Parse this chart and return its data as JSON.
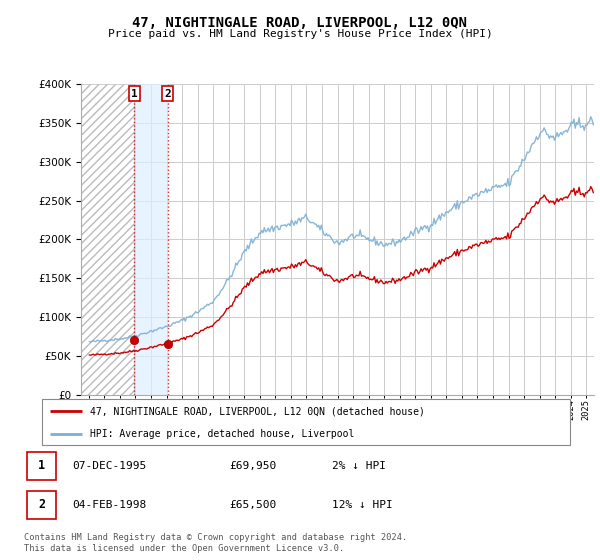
{
  "title": "47, NIGHTINGALE ROAD, LIVERPOOL, L12 0QN",
  "subtitle": "Price paid vs. HM Land Registry's House Price Index (HPI)",
  "legend_line1": "47, NIGHTINGALE ROAD, LIVERPOOL, L12 0QN (detached house)",
  "legend_line2": "HPI: Average price, detached house, Liverpool",
  "sale1_label": "1",
  "sale1_date": "07-DEC-1995",
  "sale1_price": "£69,950",
  "sale1_hpi": "2% ↓ HPI",
  "sale2_label": "2",
  "sale2_date": "04-FEB-1998",
  "sale2_price": "£65,500",
  "sale2_hpi": "12% ↓ HPI",
  "footer": "Contains HM Land Registry data © Crown copyright and database right 2024.\nThis data is licensed under the Open Government Licence v3.0.",
  "sale_color": "#cc0000",
  "hpi_color": "#7bafd4",
  "hpi_color_light": "#aaccee",
  "hatch_color": "#cccccc",
  "sale_point1_x": 1995.917,
  "sale_point1_y": 69950,
  "sale_point2_x": 1998.083,
  "sale_point2_y": 65500,
  "ylim": [
    0,
    400000
  ],
  "xlim_start": 1993.0,
  "xlim_end": 2025.5,
  "hatch_start": 1993.0,
  "hatch_end": 1995.917,
  "highlight_start": 1995.917,
  "highlight_end": 1998.083
}
